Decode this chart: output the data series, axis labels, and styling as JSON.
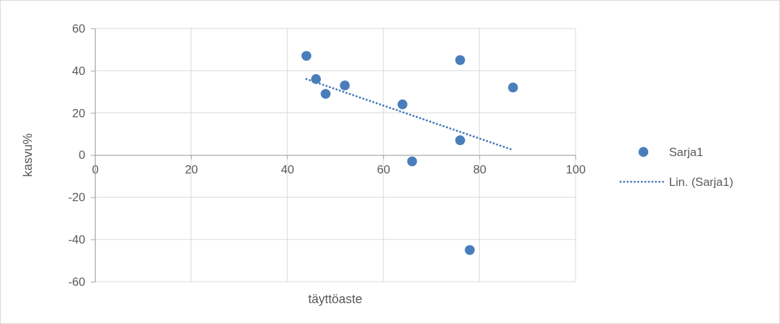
{
  "chart_data": {
    "type": "scatter",
    "xlabel": "täyttöaste",
    "ylabel": "kasvu%",
    "xlim": [
      0,
      100
    ],
    "xticks": [
      0,
      20,
      40,
      60,
      80,
      100
    ],
    "ylim": [
      -60,
      60
    ],
    "yticks": [
      -60,
      -40,
      -20,
      0,
      20,
      40,
      60
    ],
    "grid": true,
    "legend": "right",
    "marker": "circle",
    "series": [
      {
        "name": "Sarja1",
        "color": "#4a7ebb",
        "x": [
          44,
          46,
          48,
          52,
          64,
          66,
          76,
          76,
          78,
          87
        ],
        "values": [
          47,
          36,
          29,
          33,
          24,
          -3,
          45,
          7,
          -45,
          32
        ]
      },
      {
        "name": "Lin. (Sarja1)",
        "type": "line",
        "color": "#4a7ebb",
        "line_style": "dotted",
        "marker": "none",
        "x": [
          44,
          87
        ],
        "values": [
          36,
          2.4
        ]
      }
    ]
  }
}
